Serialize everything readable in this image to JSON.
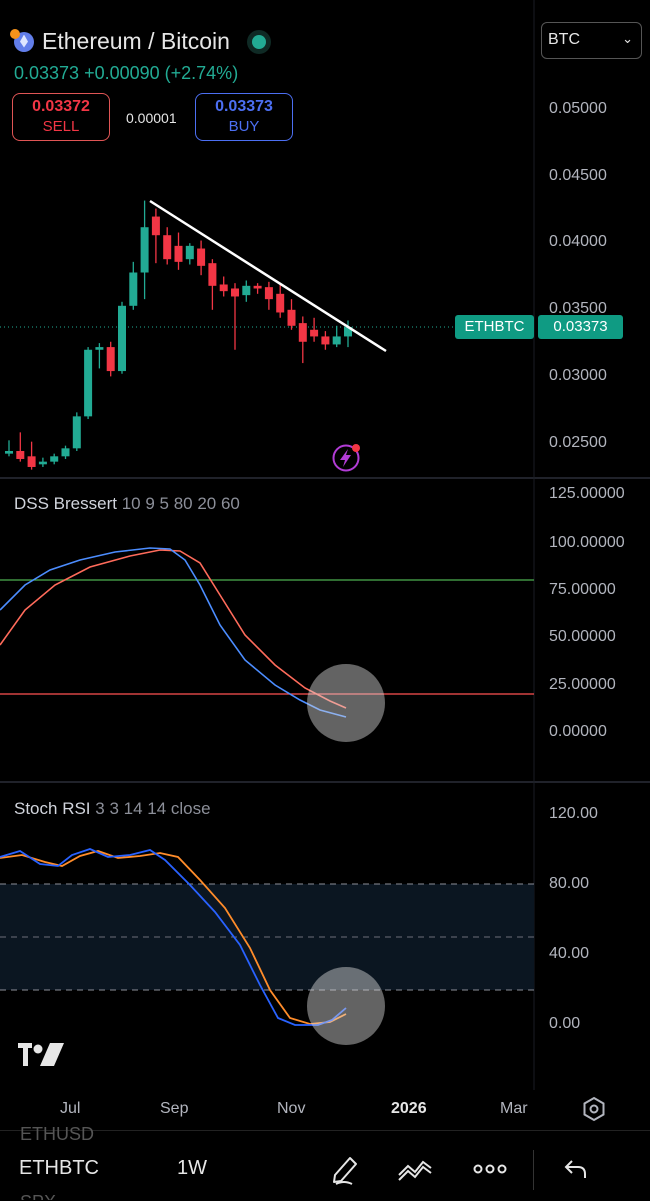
{
  "header": {
    "title": "Ethereum / Bitcoin",
    "price_change": "0.03373 +0.00090 (+2.74%)",
    "sell": {
      "price": "0.03372",
      "label": "SELL"
    },
    "buy": {
      "price": "0.03373",
      "label": "BUY"
    },
    "spread": "0.00001",
    "currency_select": "BTC"
  },
  "price_pane": {
    "y_ticks": [
      "0.05000",
      "0.04500",
      "0.04000",
      "0.03500",
      "0.03000",
      "0.02500"
    ],
    "symbol_tag": "ETHBTC",
    "last_price_tag": "0.03373"
  },
  "dss_pane": {
    "name": "DSS Bressert",
    "params": "10 9 5 80 20 60",
    "y_ticks": [
      "125.00000",
      "100.00000",
      "75.00000",
      "50.00000",
      "25.00000",
      "0.00000"
    ]
  },
  "stoch_pane": {
    "name": "Stoch RSI",
    "params": "3 3 14 14 close",
    "y_ticks": [
      "120.00",
      "80.00",
      "40.00",
      "0.00"
    ]
  },
  "x_axis": {
    "labels": [
      "Jul",
      "Sep",
      "Nov",
      "2026",
      "Mar"
    ]
  },
  "bottom_bar": {
    "symbol": "ETHBTC",
    "interval": "1W",
    "ghost_above": "ETHUSD",
    "ghost_below": "SPX"
  },
  "colors": {
    "up": "#22ab94",
    "down": "#f23645",
    "trendline": "#ffffff",
    "dss_fast": "#4c8dff",
    "dss_slow": "#ff6b5b",
    "stoch_k": "#2962ff",
    "stoch_d": "#ff8c2a",
    "level_upper": "#4caf50",
    "level_lower": "#ff5252"
  },
  "icons": [
    "ethereum-icon",
    "live-status-icon",
    "chevron-down-icon",
    "flash-icon",
    "tradingview-logo-icon",
    "settings-icon",
    "pencil-icon",
    "indicators-icon",
    "more-icon",
    "undo-icon"
  ]
}
